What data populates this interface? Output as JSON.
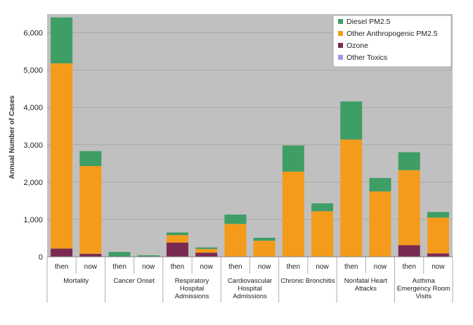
{
  "chart_data": {
    "type": "bar",
    "stacked": true,
    "ylabel": "Annual Number of Cases",
    "ylim": [
      0,
      6500
    ],
    "yticks": [
      0,
      1000,
      2000,
      3000,
      4000,
      5000,
      6000
    ],
    "ytick_labels": [
      "0",
      "1,000",
      "2,000",
      "3,000",
      "4,000",
      "5,000",
      "6,000"
    ],
    "grid": true,
    "legend_position": "top-right",
    "groups": [
      {
        "label_lines": [
          "Mortality"
        ]
      },
      {
        "label_lines": [
          "Cancer Onset"
        ]
      },
      {
        "label_lines": [
          "Respiratory",
          "Hospital",
          "Admissions"
        ]
      },
      {
        "label_lines": [
          "Cardiovascular",
          "Hospital",
          "Admissions"
        ]
      },
      {
        "label_lines": [
          "Chronic Bronchitis"
        ]
      },
      {
        "label_lines": [
          "Nonfatal Heart",
          "Attacks"
        ]
      },
      {
        "label_lines": [
          "Asthma",
          "Emergency Room",
          "Visits"
        ]
      }
    ],
    "categories": [
      "then",
      "now",
      "then",
      "now",
      "then",
      "now",
      "then",
      "now",
      "then",
      "now",
      "then",
      "now",
      "then",
      "now"
    ],
    "series": [
      {
        "name": "Ozone",
        "color": "#7a2a52",
        "values": [
          220,
          80,
          0,
          0,
          380,
          110,
          0,
          0,
          0,
          0,
          0,
          0,
          310,
          90
        ]
      },
      {
        "name": "Other Anthropogenic PM2.5",
        "color": "#f59b1c",
        "values": [
          4960,
          2350,
          0,
          0,
          200,
          100,
          880,
          430,
          2280,
          1220,
          3140,
          1750,
          2010,
          960
        ]
      },
      {
        "name": "Diesel PM2.5",
        "color": "#3e9e66",
        "values": [
          1230,
          400,
          130,
          40,
          70,
          40,
          250,
          80,
          700,
          210,
          1020,
          360,
          480,
          150
        ]
      },
      {
        "name": "Other Toxics",
        "color": "#9a9ae6",
        "values": [
          0,
          0,
          0,
          0,
          0,
          0,
          0,
          0,
          0,
          0,
          0,
          0,
          0,
          0
        ]
      }
    ],
    "legend_order": [
      "Diesel PM2.5",
      "Other Anthropogenic PM2.5",
      "Ozone",
      "Other Toxics"
    ],
    "plot_background": "#c0c0c0"
  }
}
